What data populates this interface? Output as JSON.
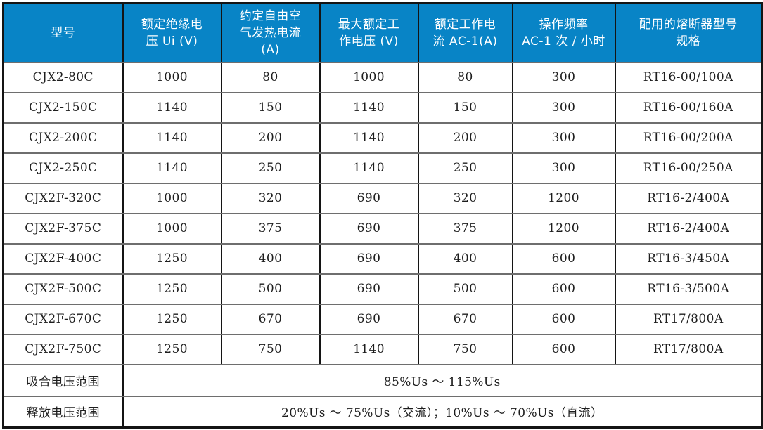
{
  "colors": {
    "header_bg": "#0884C6",
    "header_text": "#FFFFFF",
    "body_text": "#1D1D1D",
    "border_dark": "#141414",
    "border_gray": "#6E6E6E"
  },
  "table": {
    "columns": [
      "型号",
      "额定绝缘电\n压 Ui (V)",
      "约定自由空\n气发热电流\n(A)",
      "最大额定工\n作电压 (V)",
      "额定工作电\n流 AC-1(A)",
      "操作频率\nAC-1 次 / 小时",
      "配用的熔断器型号\n规格"
    ],
    "rows": [
      [
        "CJX2-80C",
        "1000",
        "80",
        "1000",
        "80",
        "300",
        "RT16-00/100A"
      ],
      [
        "CJX2-150C",
        "1140",
        "150",
        "1140",
        "150",
        "300",
        "RT16-00/160A"
      ],
      [
        "CJX2-200C",
        "1140",
        "200",
        "1140",
        "200",
        "300",
        "RT16-00/200A"
      ],
      [
        "CJX2-250C",
        "1140",
        "250",
        "1140",
        "250",
        "300",
        "RT16-00/250A"
      ],
      [
        "CJX2F-320C",
        "1000",
        "320",
        "690",
        "320",
        "1200",
        "RT16-2/400A"
      ],
      [
        "CJX2F-375C",
        "1000",
        "375",
        "690",
        "375",
        "1200",
        "RT16-2/400A"
      ],
      [
        "CJX2F-400C",
        "1250",
        "400",
        "690",
        "400",
        "600",
        "RT16-3/450A"
      ],
      [
        "CJX2F-500C",
        "1250",
        "500",
        "690",
        "500",
        "600",
        "RT16-3/500A"
      ],
      [
        "CJX2F-670C",
        "1250",
        "670",
        "690",
        "670",
        "600",
        "RT17/800A"
      ],
      [
        "CJX2F-750C",
        "1250",
        "750",
        "1140",
        "750",
        "600",
        "RT17/800A"
      ]
    ],
    "footer": [
      {
        "label": "吸合电压范围",
        "value": "85%Us ～ 115%Us"
      },
      {
        "label": "释放电压范围",
        "value": "20%Us ～ 75%Us（交流）；10%Us ～ 70%Us（直流）"
      }
    ]
  }
}
